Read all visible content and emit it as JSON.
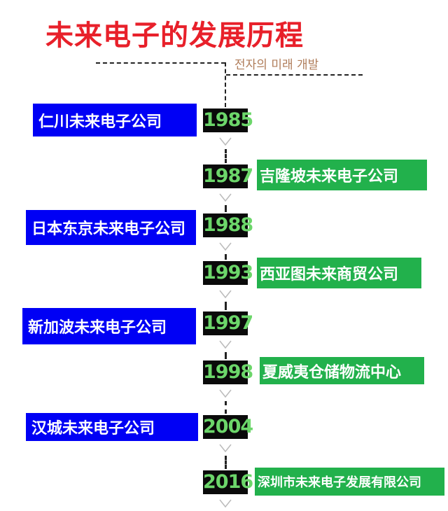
{
  "title": "未来电子的发展历程",
  "subtitle": "전자의 미래 개발",
  "colors": {
    "title": "#e8202a",
    "left_label": "#0000f5",
    "right_label": "#22b14c",
    "year_text": "#6cd66a",
    "year_bg": "#0a0a0a"
  },
  "timeline": [
    {
      "year": "1985",
      "label": "仁川未来电子公司",
      "side": "left"
    },
    {
      "year": "1987",
      "label": "吉隆坡未来电子公司",
      "side": "right"
    },
    {
      "year": "1988",
      "label": "日本东京未来电子公司",
      "side": "left"
    },
    {
      "year": "1993",
      "label": "西亚图未来商贸公司",
      "side": "right"
    },
    {
      "year": "1997",
      "label": "新加波未来电子公司",
      "side": "left"
    },
    {
      "year": "1998",
      "label": "夏威夷仓储物流中心",
      "side": "right"
    },
    {
      "year": "2004",
      "label": "汉城未来电子公司",
      "side": "left"
    },
    {
      "year": "2016",
      "label": "深圳市未来电子发展有限公司",
      "side": "right"
    }
  ]
}
